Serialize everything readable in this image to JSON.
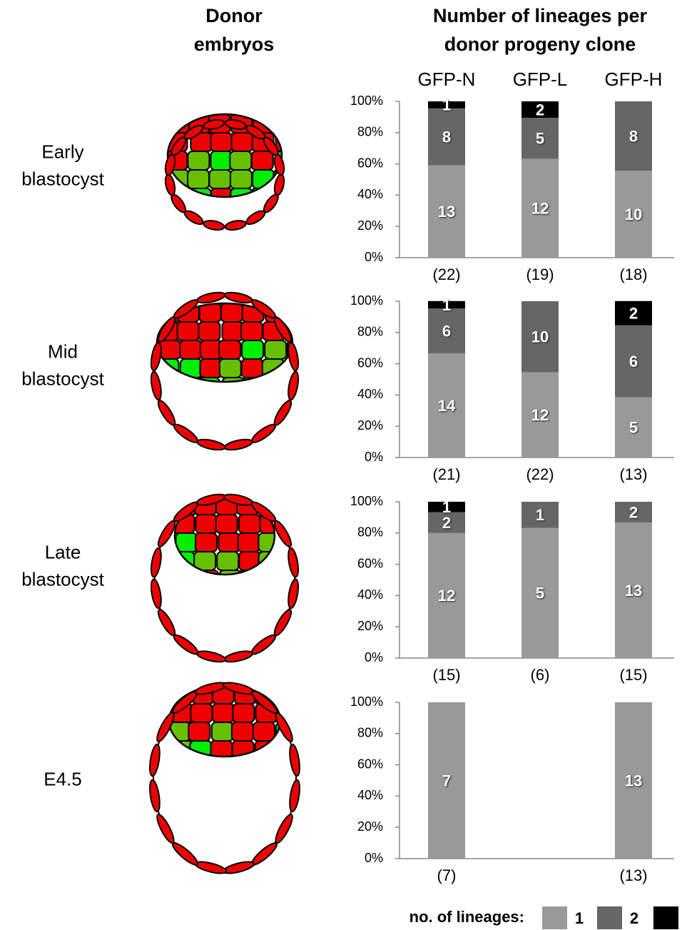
{
  "heading": [
    "Donor",
    "embryos"
  ],
  "legend": {
    "title": "no. of lineages:",
    "entries": [
      {
        "name": "1",
        "color": "#999999"
      },
      {
        "name": "2",
        "color": "#666666"
      },
      {
        "name": null,
        "color": "#000000"
      }
    ]
  },
  "chart_data": [
    {
      "type": "bar",
      "stacked": true,
      "title": [
        "Number of lineages per",
        "donor progeny clone"
      ],
      "categories": [
        "GFP-N",
        "GFP-L",
        "GFP-H"
      ],
      "row_label": [
        "Early",
        "blastocyst"
      ],
      "ylim": [
        0,
        100
      ],
      "yticks": [
        {
          "value": 0,
          "label": "0%"
        },
        {
          "value": 20,
          "label": "20%"
        },
        {
          "value": 40,
          "label": "40%"
        },
        {
          "value": 60,
          "label": "60%"
        },
        {
          "value": 80,
          "label": "80%"
        },
        {
          "value": 100,
          "label": "100%"
        }
      ],
      "series": [
        {
          "color": "#999999",
          "values": [
            59.1,
            63.2,
            55.6
          ],
          "counts": [
            "13",
            "12",
            "10"
          ]
        },
        {
          "color": "#666666",
          "values": [
            36.4,
            26.3,
            44.4
          ],
          "counts": [
            "8",
            "5",
            "8"
          ]
        },
        {
          "color": "#000000",
          "values": [
            4.5,
            10.5,
            null
          ],
          "counts": [
            "1",
            "2",
            null
          ]
        }
      ],
      "n_labels": [
        "(22)",
        "(19)",
        "(18)"
      ]
    },
    {
      "type": "bar",
      "stacked": true,
      "row_label": [
        "Mid",
        "blastocyst"
      ],
      "ylim": [
        0,
        100
      ],
      "yticks": [
        {
          "value": 0,
          "label": "0%"
        },
        {
          "value": 20,
          "label": "20%"
        },
        {
          "value": 40,
          "label": "40%"
        },
        {
          "value": 60,
          "label": "60%"
        },
        {
          "value": 80,
          "label": "80%"
        },
        {
          "value": 100,
          "label": "100%"
        }
      ],
      "series": [
        {
          "color": "#999999",
          "values": [
            66.7,
            54.5,
            38.5
          ],
          "counts": [
            "14",
            "12",
            "5"
          ]
        },
        {
          "color": "#666666",
          "values": [
            28.6,
            45.5,
            46.2
          ],
          "counts": [
            "6",
            "10",
            "6"
          ]
        },
        {
          "color": "#000000",
          "values": [
            4.8,
            null,
            15.4
          ],
          "counts": [
            "1",
            null,
            "2"
          ]
        }
      ],
      "n_labels": [
        "(21)",
        "(22)",
        "(13)"
      ]
    },
    {
      "type": "bar",
      "stacked": true,
      "row_label": [
        "Late",
        "blastocyst"
      ],
      "ylim": [
        0,
        100
      ],
      "yticks": [
        {
          "value": 0,
          "label": "0%"
        },
        {
          "value": 20,
          "label": "20%"
        },
        {
          "value": 40,
          "label": "40%"
        },
        {
          "value": 60,
          "label": "60%"
        },
        {
          "value": 80,
          "label": "80%"
        },
        {
          "value": 100,
          "label": "100%"
        }
      ],
      "series": [
        {
          "color": "#999999",
          "values": [
            80,
            83.3,
            86.7
          ],
          "counts": [
            "12",
            "5",
            "13"
          ]
        },
        {
          "color": "#666666",
          "values": [
            13.3,
            16.7,
            13.3
          ],
          "counts": [
            "2",
            "1",
            "2"
          ]
        },
        {
          "color": "#000000",
          "values": [
            6.7,
            null,
            null
          ],
          "counts": [
            "1",
            null,
            null
          ]
        }
      ],
      "n_labels": [
        "(15)",
        "(6)",
        "(15)"
      ]
    },
    {
      "type": "bar",
      "stacked": true,
      "row_label": [
        "E4.5"
      ],
      "ylim": [
        0,
        100
      ],
      "yticks": [
        {
          "value": 0,
          "label": "0%"
        },
        {
          "value": 20,
          "label": "20%"
        },
        {
          "value": 40,
          "label": "40%"
        },
        {
          "value": 60,
          "label": "60%"
        },
        {
          "value": 80,
          "label": "80%"
        },
        {
          "value": 100,
          "label": "100%"
        }
      ],
      "series": [
        {
          "color": "#999999",
          "values": [
            100,
            null,
            100
          ],
          "counts": [
            "7",
            null,
            "13"
          ]
        },
        {
          "color": "#666666",
          "values": [
            null,
            null,
            null
          ],
          "counts": [
            null,
            null,
            null
          ]
        },
        {
          "color": "#000000",
          "values": [
            null,
            null,
            null
          ],
          "counts": [
            null,
            null,
            null
          ]
        }
      ],
      "n_labels": [
        "(7)",
        null,
        "(13)"
      ]
    }
  ]
}
